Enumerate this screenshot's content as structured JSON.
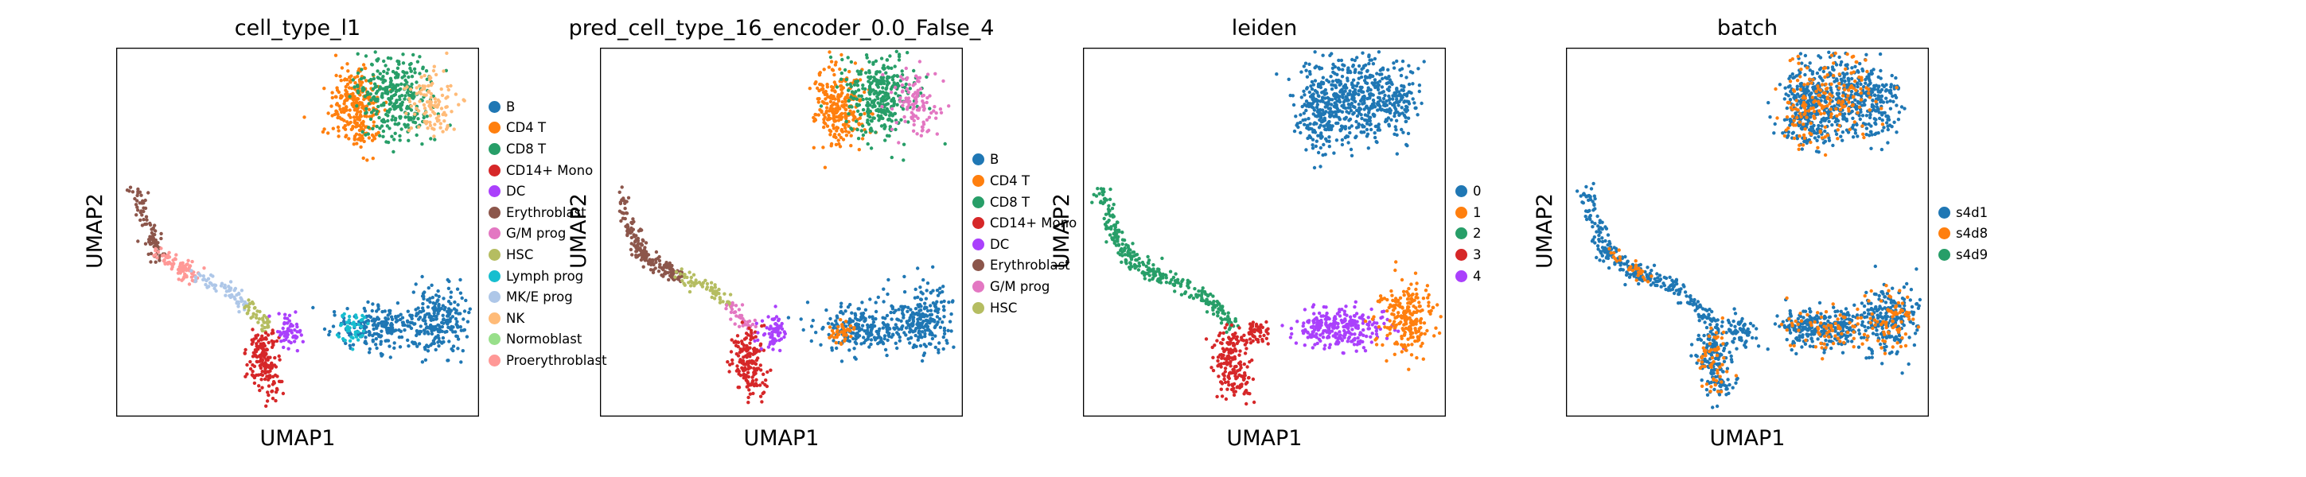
{
  "figure": {
    "type": "umap_grid"
  },
  "chart_data": [
    {
      "type": "scatter",
      "title": "cell_type_l1",
      "xlabel": "UMAP1",
      "ylabel": "UMAP2",
      "legend": [
        {
          "label": "B",
          "color": "#1f77b4"
        },
        {
          "label": "CD4 T",
          "color": "#ff7f0e"
        },
        {
          "label": "CD8 T",
          "color": "#279e68"
        },
        {
          "label": "CD14+ Mono",
          "color": "#d62728"
        },
        {
          "label": "DC",
          "color": "#aa40fc"
        },
        {
          "label": "Erythroblast",
          "color": "#8c564b"
        },
        {
          "label": "G/M prog",
          "color": "#e377c2"
        },
        {
          "label": "HSC",
          "color": "#b5bd61"
        },
        {
          "label": "Lymph prog",
          "color": "#17becf"
        },
        {
          "label": "MK/E prog",
          "color": "#aec7e8"
        },
        {
          "label": "NK",
          "color": "#ffbb78"
        },
        {
          "label": "Normoblast",
          "color": "#98df8a"
        },
        {
          "label": "Proerythroblast",
          "color": "#ff9896"
        }
      ],
      "legend_position": "right",
      "ticks": false,
      "grid": false
    },
    {
      "type": "scatter",
      "title": "pred_cell_type_16_encoder_0.0_False_4",
      "xlabel": "UMAP1",
      "ylabel": "UMAP2",
      "legend": [
        {
          "label": "B",
          "color": "#1f77b4"
        },
        {
          "label": "CD4 T",
          "color": "#ff7f0e"
        },
        {
          "label": "CD8 T",
          "color": "#279e68"
        },
        {
          "label": "CD14+ Mono",
          "color": "#d62728"
        },
        {
          "label": "DC",
          "color": "#aa40fc"
        },
        {
          "label": "Erythroblast",
          "color": "#8c564b"
        },
        {
          "label": "G/M prog",
          "color": "#e377c2"
        },
        {
          "label": "HSC",
          "color": "#b5bd61"
        }
      ],
      "legend_position": "right",
      "ticks": false,
      "grid": false
    },
    {
      "type": "scatter",
      "title": "leiden",
      "xlabel": "UMAP1",
      "ylabel": "UMAP2",
      "legend": [
        {
          "label": "0",
          "color": "#1f77b4"
        },
        {
          "label": "1",
          "color": "#ff7f0e"
        },
        {
          "label": "2",
          "color": "#279e68"
        },
        {
          "label": "3",
          "color": "#d62728"
        },
        {
          "label": "4",
          "color": "#aa40fc"
        }
      ],
      "legend_position": "right",
      "ticks": false,
      "grid": false
    },
    {
      "type": "scatter",
      "title": "batch",
      "xlabel": "UMAP1",
      "ylabel": "UMAP2",
      "legend": [
        {
          "label": "s4d1",
          "color": "#1f77b4"
        },
        {
          "label": "s4d8",
          "color": "#ff7f0e"
        },
        {
          "label": "s4d9",
          "color": "#279e68"
        }
      ],
      "legend_position": "right",
      "ticks": false,
      "grid": false
    }
  ]
}
